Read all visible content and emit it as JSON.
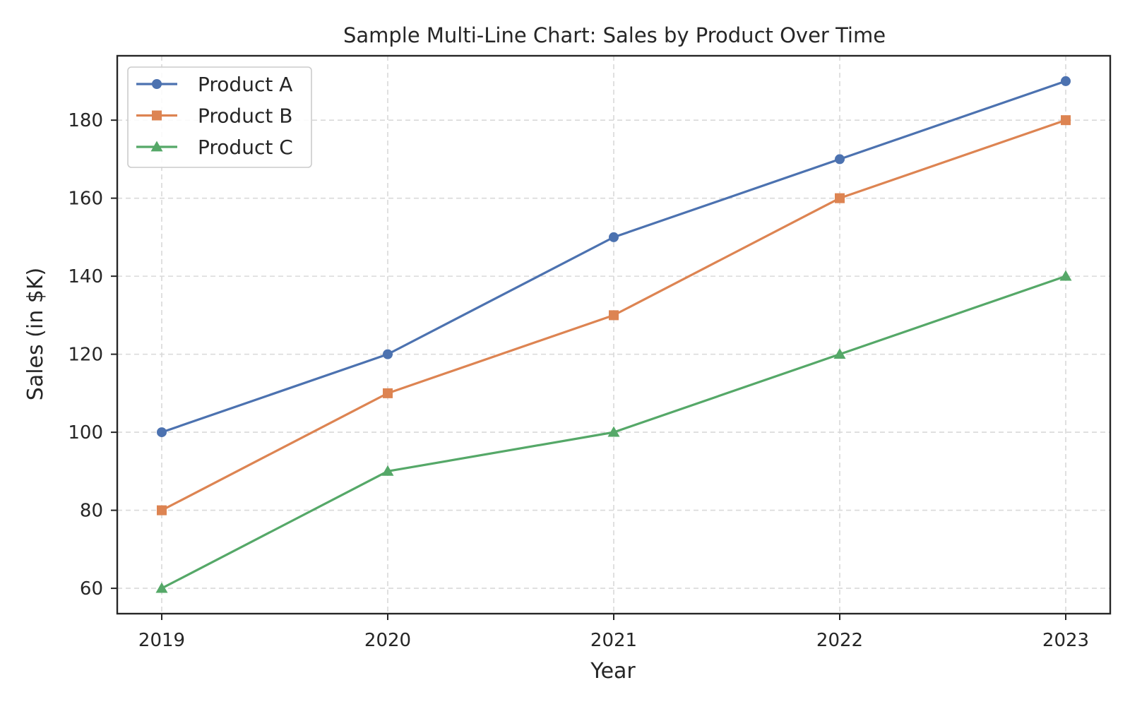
{
  "chart_data": {
    "type": "line",
    "title": "Sample Multi-Line Chart: Sales by Product Over Time",
    "xlabel": "Year",
    "ylabel": "Sales (in $K)",
    "categories": [
      "2019",
      "2020",
      "2021",
      "2022",
      "2023"
    ],
    "x_ticks": [
      "2019",
      "2020",
      "2021",
      "2022",
      "2023"
    ],
    "y_ticks": [
      60,
      80,
      100,
      120,
      140,
      160,
      180
    ],
    "ylim": [
      53.5,
      196.5
    ],
    "grid": true,
    "legend_position": "top-left",
    "series": [
      {
        "name": "Product A",
        "values": [
          100,
          120,
          150,
          170,
          190
        ],
        "color": "#4c72b0",
        "marker": "circle"
      },
      {
        "name": "Product B",
        "values": [
          80,
          110,
          130,
          160,
          180
        ],
        "color": "#dd8452",
        "marker": "square"
      },
      {
        "name": "Product C",
        "values": [
          60,
          90,
          100,
          120,
          140
        ],
        "color": "#55a868",
        "marker": "triangle"
      }
    ]
  }
}
